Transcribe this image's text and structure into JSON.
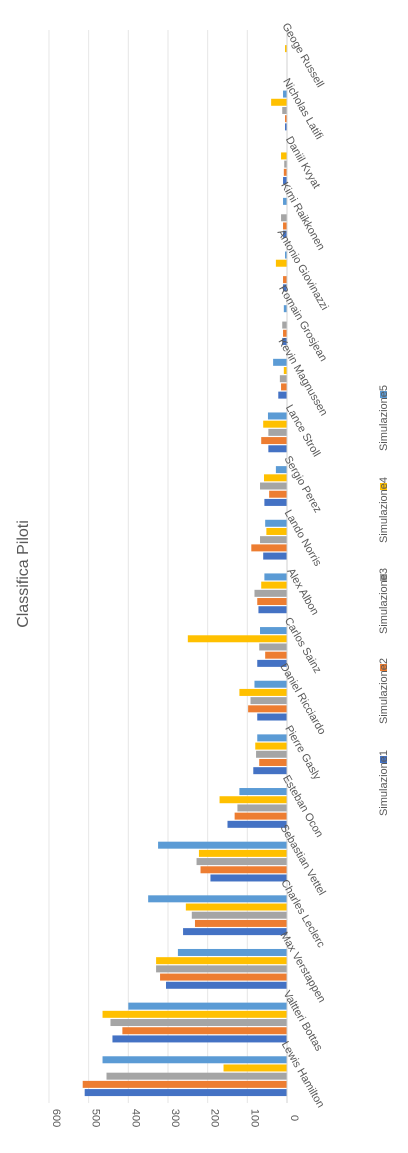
{
  "chart_data": {
    "type": "bar",
    "orientation": "horizontal",
    "title": "Classifica Piloti",
    "xlabel": "",
    "ylabel": "",
    "xlim": [
      0,
      600
    ],
    "ticks": [
      "0",
      "100",
      "200",
      "300",
      "400",
      "500",
      "600"
    ],
    "tick_values": [
      0,
      100,
      200,
      300,
      400,
      500,
      600
    ],
    "grid": true,
    "legend_position": "bottom",
    "categories": [
      "Lewis Hamilton",
      "Valtteri Bottas",
      "Max Verstappen",
      "Charles Leclerc",
      "Sebastian Vettel",
      "Esteban Ocon",
      "Pierre Gasly",
      "Daniel Ricciardo",
      "Carlos Sainz",
      "Alex Albon",
      "Lando Norris",
      "Sergio Perez",
      "Lance Stroll",
      "Kevin Magnussen",
      "Romain Grosjean",
      "Antonio Giovinazzi",
      "Kimi Raikkonen",
      "Daniil Kvyat",
      "Nicholas Latifi",
      "Geoge Russell"
    ],
    "series": [
      {
        "name": "Simulazione1",
        "color": "#4472C4",
        "values": [
          510,
          440,
          305,
          262,
          193,
          150,
          85,
          75,
          75,
          72,
          60,
          57,
          47,
          22,
          12,
          10,
          10,
          10,
          5,
          0
        ]
      },
      {
        "name": "Simulazione2",
        "color": "#ED7D31",
        "values": [
          515,
          415,
          320,
          232,
          218,
          132,
          70,
          98,
          55,
          75,
          90,
          45,
          65,
          15,
          10,
          10,
          10,
          8,
          5,
          0
        ]
      },
      {
        "name": "Simulazione3",
        "color": "#A5A5A5",
        "values": [
          455,
          445,
          330,
          240,
          228,
          125,
          78,
          92,
          70,
          82,
          68,
          68,
          47,
          18,
          12,
          0,
          15,
          7,
          12,
          0
        ]
      },
      {
        "name": "Simulazione4",
        "color": "#FFC000",
        "values": [
          160,
          465,
          330,
          255,
          222,
          170,
          80,
          120,
          250,
          65,
          52,
          58,
          60,
          8,
          0,
          28,
          0,
          15,
          40,
          5
        ]
      },
      {
        "name": "Simulazione5",
        "color": "#5B9BD5",
        "values": [
          465,
          400,
          275,
          350,
          325,
          120,
          75,
          82,
          68,
          57,
          55,
          28,
          48,
          35,
          8,
          5,
          10,
          0,
          10,
          0
        ]
      }
    ]
  }
}
